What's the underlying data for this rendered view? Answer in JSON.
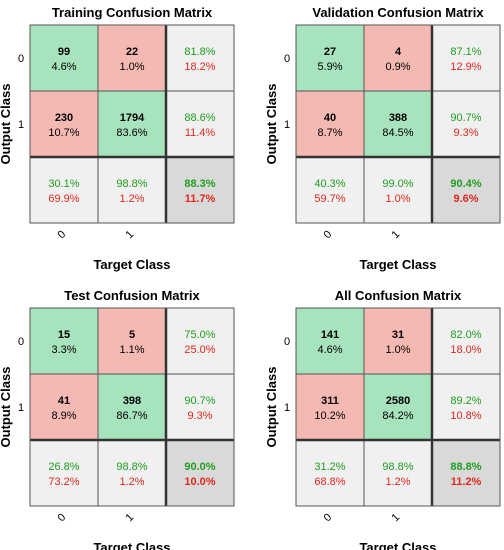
{
  "chart_data": [
    {
      "type": "heatmap",
      "title": "Training Confusion Matrix",
      "xlabel": "Target Class",
      "ylabel": "Output Class",
      "classes": [
        "0",
        "1"
      ],
      "cells": [
        [
          {
            "count": "99",
            "pct": "4.6%"
          },
          {
            "count": "22",
            "pct": "1.0%"
          }
        ],
        [
          {
            "count": "230",
            "pct": "10.7%"
          },
          {
            "count": "1794",
            "pct": "83.6%"
          }
        ]
      ],
      "row_summary": [
        [
          "81.8%",
          "18.2%"
        ],
        [
          "88.6%",
          "11.4%"
        ]
      ],
      "col_summary": [
        [
          "30.1%",
          "69.9%"
        ],
        [
          "98.8%",
          "1.2%"
        ]
      ],
      "overall": [
        "88.3%",
        "11.7%"
      ]
    },
    {
      "type": "heatmap",
      "title": "Validation Confusion Matrix",
      "xlabel": "Target Class",
      "ylabel": "Output Class",
      "classes": [
        "0",
        "1"
      ],
      "cells": [
        [
          {
            "count": "27",
            "pct": "5.9%"
          },
          {
            "count": "4",
            "pct": "0.9%"
          }
        ],
        [
          {
            "count": "40",
            "pct": "8.7%"
          },
          {
            "count": "388",
            "pct": "84.5%"
          }
        ]
      ],
      "row_summary": [
        [
          "87.1%",
          "12.9%"
        ],
        [
          "90.7%",
          "9.3%"
        ]
      ],
      "col_summary": [
        [
          "40.3%",
          "59.7%"
        ],
        [
          "99.0%",
          "1.0%"
        ]
      ],
      "overall": [
        "90.4%",
        "9.6%"
      ]
    },
    {
      "type": "heatmap",
      "title": "Test Confusion Matrix",
      "xlabel": "Target Class",
      "ylabel": "Output Class",
      "classes": [
        "0",
        "1"
      ],
      "cells": [
        [
          {
            "count": "15",
            "pct": "3.3%"
          },
          {
            "count": "5",
            "pct": "1.1%"
          }
        ],
        [
          {
            "count": "41",
            "pct": "8.9%"
          },
          {
            "count": "398",
            "pct": "86.7%"
          }
        ]
      ],
      "row_summary": [
        [
          "75.0%",
          "25.0%"
        ],
        [
          "90.7%",
          "9.3%"
        ]
      ],
      "col_summary": [
        [
          "26.8%",
          "73.2%"
        ],
        [
          "98.8%",
          "1.2%"
        ]
      ],
      "overall": [
        "90.0%",
        "10.0%"
      ]
    },
    {
      "type": "heatmap",
      "title": "All Confusion Matrix",
      "xlabel": "Target Class",
      "ylabel": "Output Class",
      "classes": [
        "0",
        "1"
      ],
      "cells": [
        [
          {
            "count": "141",
            "pct": "4.6%"
          },
          {
            "count": "31",
            "pct": "1.0%"
          }
        ],
        [
          {
            "count": "311",
            "pct": "10.2%"
          },
          {
            "count": "2580",
            "pct": "84.2%"
          }
        ]
      ],
      "row_summary": [
        [
          "82.0%",
          "18.0%"
        ],
        [
          "89.2%",
          "10.8%"
        ]
      ],
      "col_summary": [
        [
          "31.2%",
          "68.8%"
        ],
        [
          "98.8%",
          "1.2%"
        ]
      ],
      "overall": [
        "88.8%",
        "11.2%"
      ]
    }
  ],
  "colors": {
    "correct": "#a7e3bd",
    "incorrect": "#f5b9b3",
    "summary": "#f0f0f0",
    "overall": "#d9d9d9",
    "green_text": "#1f9e1f",
    "red_text": "#e0281e",
    "grid": "#555555",
    "thick": "#333333"
  }
}
